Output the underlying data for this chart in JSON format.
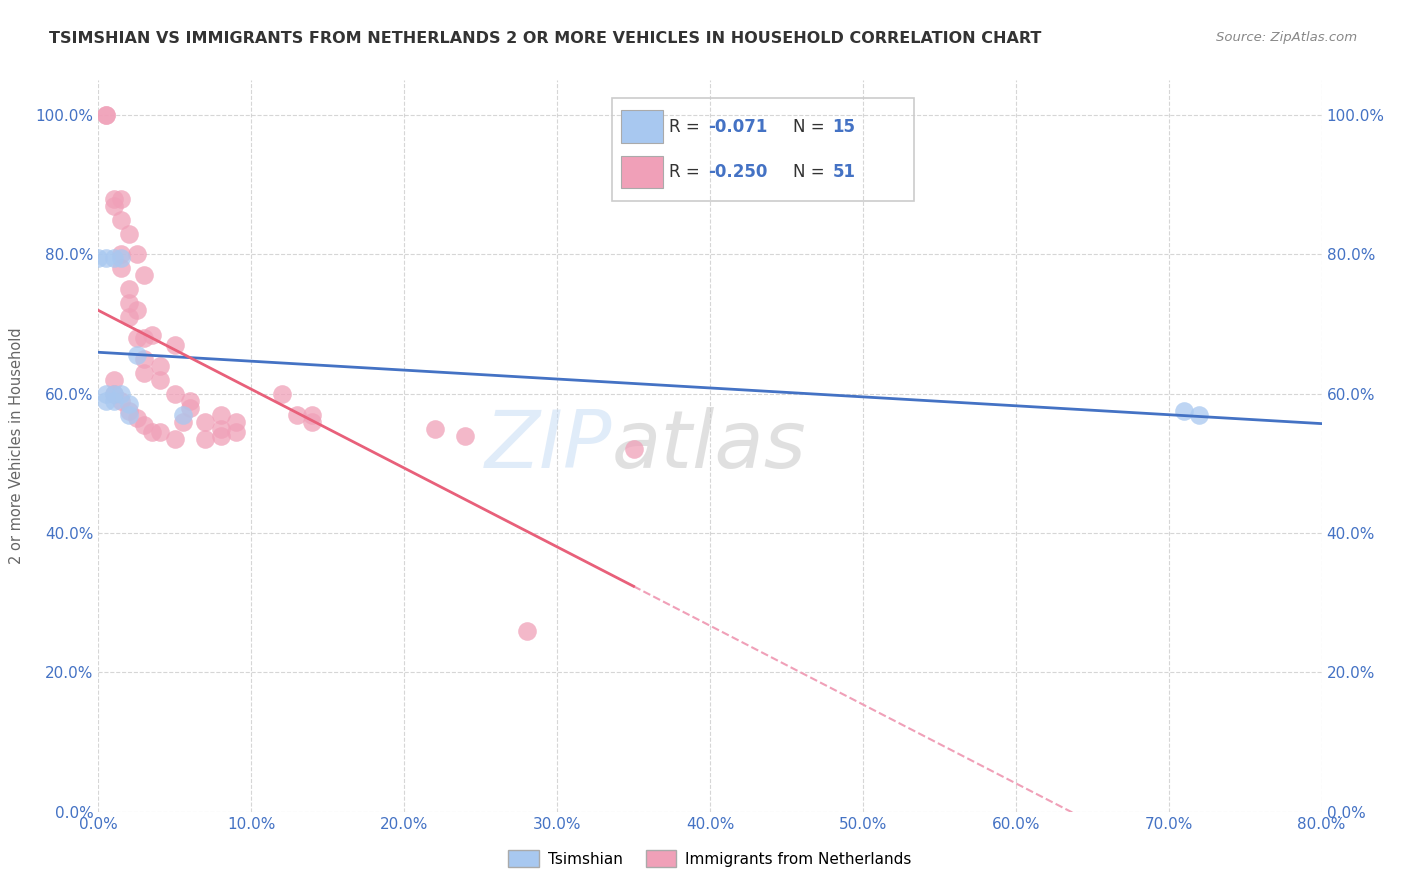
{
  "title": "TSIMSHIAN VS IMMIGRANTS FROM NETHERLANDS 2 OR MORE VEHICLES IN HOUSEHOLD CORRELATION CHART",
  "source": "Source: ZipAtlas.com",
  "ylabel": "2 or more Vehicles in Household",
  "legend_R_blue": "-0.071",
  "legend_N_blue": "15",
  "legend_R_pink": "-0.250",
  "legend_N_pink": "51",
  "blue_color": "#a8c8f0",
  "pink_color": "#f0a0b8",
  "blue_line_color": "#4472c4",
  "pink_line_color": "#e8607a",
  "pink_dash_color": "#f0a0b8",
  "xlim": [
    0.0,
    0.8
  ],
  "ylim": [
    0.0,
    1.05
  ],
  "x_ticks": [
    0.0,
    0.1,
    0.2,
    0.3,
    0.4,
    0.5,
    0.6,
    0.7,
    0.8
  ],
  "y_ticks": [
    0.0,
    0.2,
    0.4,
    0.6,
    0.8,
    1.0
  ],
  "tick_color": "#4472c4",
  "grid_color": "#cccccc",
  "title_color": "#333333",
  "source_color": "#888888",
  "watermark_color": "#ddeeff",
  "tsimshian_x": [
    0.0,
    0.005,
    0.005,
    0.005,
    0.01,
    0.01,
    0.01,
    0.015,
    0.015,
    0.02,
    0.02,
    0.025,
    0.055,
    0.71,
    0.72
  ],
  "tsimshian_y": [
    0.795,
    0.795,
    0.59,
    0.6,
    0.6,
    0.795,
    0.59,
    0.6,
    0.795,
    0.585,
    0.57,
    0.655,
    0.57,
    0.575,
    0.57
  ],
  "netherlands_x": [
    0.005,
    0.005,
    0.01,
    0.01,
    0.015,
    0.015,
    0.015,
    0.02,
    0.02,
    0.02,
    0.025,
    0.025,
    0.03,
    0.03,
    0.03,
    0.035,
    0.04,
    0.04,
    0.05,
    0.05,
    0.06,
    0.07,
    0.08,
    0.08,
    0.09,
    0.12,
    0.13,
    0.14,
    0.015,
    0.02,
    0.025,
    0.03,
    0.01,
    0.01,
    0.015,
    0.02,
    0.025,
    0.03,
    0.035,
    0.04,
    0.05,
    0.055,
    0.06,
    0.07,
    0.08,
    0.09,
    0.14,
    0.22,
    0.24,
    0.35,
    0.28
  ],
  "netherlands_y": [
    1.0,
    1.0,
    0.88,
    0.87,
    0.85,
    0.8,
    0.78,
    0.75,
    0.73,
    0.71,
    0.72,
    0.68,
    0.68,
    0.65,
    0.63,
    0.685,
    0.64,
    0.62,
    0.67,
    0.6,
    0.59,
    0.56,
    0.55,
    0.57,
    0.56,
    0.6,
    0.57,
    0.56,
    0.88,
    0.83,
    0.8,
    0.77,
    0.62,
    0.6,
    0.59,
    0.575,
    0.565,
    0.555,
    0.545,
    0.545,
    0.535,
    0.56,
    0.58,
    0.535,
    0.54,
    0.545,
    0.57,
    0.55,
    0.54,
    0.52,
    0.26
  ]
}
